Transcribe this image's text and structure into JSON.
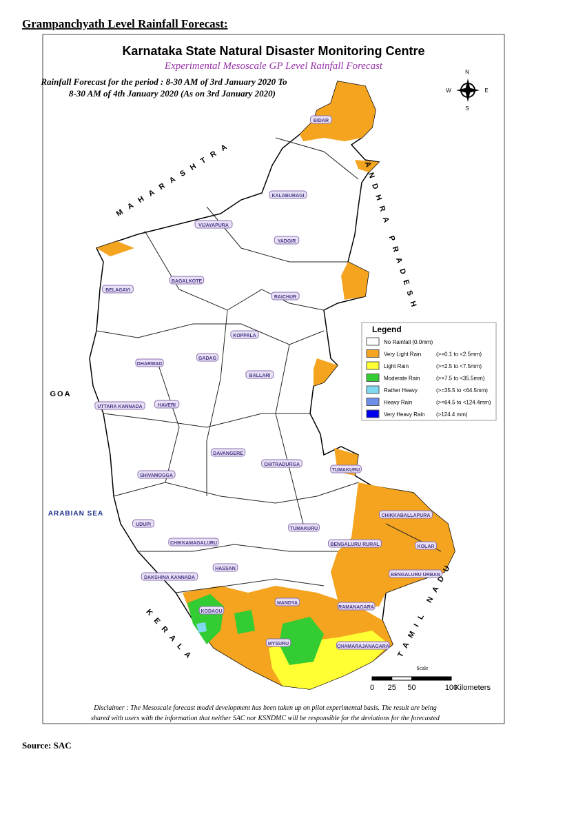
{
  "heading": "Grampanchyath Level Rainfall Forecast:",
  "map": {
    "title": "Karnataka State Natural Disaster Monitoring Centre",
    "subtitle": "Experimental Mesoscale GP Level Rainfall Forecast",
    "period_lines": [
      "Rainfall Forecast for the period : 8-30 AM of 3rd January 2020 To",
      "8-30 AM of 4th January 2020 (As on 3rd January 2020)"
    ],
    "compass": {
      "north": "N",
      "south": "S",
      "east": "E",
      "west": "W"
    },
    "legend": {
      "title": "Legend",
      "items": [
        {
          "label": "No Rainfall (0.0mm)",
          "range": "",
          "color": "#ffffff"
        },
        {
          "label": "Very Light Rain",
          "range": "(>=0.1 to <2.5mm)",
          "color": "#f4a41f"
        },
        {
          "label": "Light Rain",
          "range": "(>=2.5 to <7.5mm)",
          "color": "#ffff33"
        },
        {
          "label": "Moderate Rain",
          "range": "(>=7.5 to <35.5mm)",
          "color": "#33cc33"
        },
        {
          "label": "Rather Heavy",
          "range": "(>=35.5 to <64.5mm)",
          "color": "#80d8f0"
        },
        {
          "label": "Heavy Rain",
          "range": "(>=64.5 to <124.4mm)",
          "color": "#6f8ee8"
        },
        {
          "label": "Very Heavy Rain",
          "range": "(>124.4 mm)",
          "color": "#0000ee"
        }
      ]
    },
    "districts": [
      "BIDAR",
      "KALABURAGI",
      "VIJAYAPURA",
      "YADGIR",
      "BAGALKOTE",
      "BELAGAVI",
      "RAICHUR",
      "KOPPALA",
      "GADAG",
      "DHARWAD",
      "BALLARI",
      "HAVERI",
      "UTTARA KANNADA",
      "DAVANGERE",
      "CHITRADURGA",
      "TUMAKURU",
      "SHIVAMOGGA",
      "UDUPI",
      "TUMAKURU",
      "CHIKKABALLAPURA",
      "CHIKKAMAGALURU",
      "BENGALURU RURAL",
      "KOLAR",
      "HASSAN",
      "BENGALURU URBAN",
      "DAKSHINA KANNADA",
      "MANDYA",
      "RAMANAGARA",
      "KODAGU",
      "MYSURU",
      "CHAMARAJANAGARA"
    ],
    "neighbours": [
      "MAHARASHTRA",
      "GOA",
      "ARABIAN SEA",
      "KERALA",
      "TAMIL NADU",
      "ANDHRA PRADESH"
    ],
    "scale": {
      "title": "Scale",
      "ticks": [
        0,
        25,
        50,
        100
      ],
      "unit": "Kilometers"
    },
    "disclaimer": [
      "Disclaimer : The Mesoscale forecast model development has been taken up on pilot experimental basis. The result are being",
      "shared with users with the information that neither SAC nor KSNDMC will be responsible  for the deviations for the forecasted"
    ]
  },
  "source": "Source: SAC"
}
